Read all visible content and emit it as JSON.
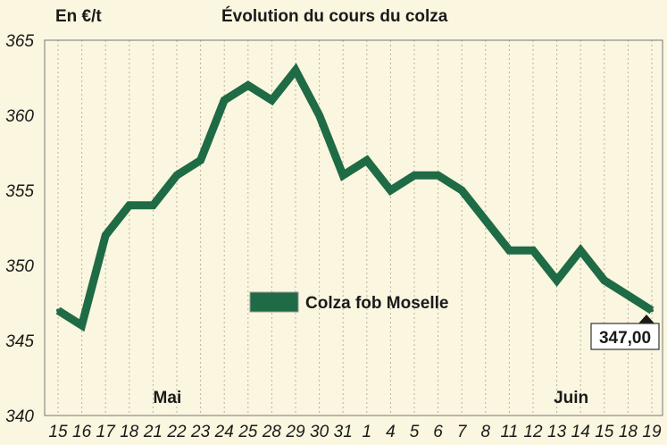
{
  "chart_data": {
    "type": "line",
    "title": "Évolution du cours du colza",
    "ylabel": "En €/t",
    "xlabel": "",
    "categories": [
      "15",
      "16",
      "17",
      "18",
      "21",
      "22",
      "23",
      "24",
      "25",
      "28",
      "29",
      "30",
      "31",
      "1",
      "4",
      "5",
      "6",
      "7",
      "8",
      "11",
      "12",
      "13",
      "14",
      "15",
      "18",
      "19"
    ],
    "month_labels": [
      {
        "text": "Mai",
        "at_index": 4
      },
      {
        "text": "Juin",
        "at_index": 21
      }
    ],
    "series": [
      {
        "name": "Colza fob Moselle",
        "color": "#1e6b45",
        "values": [
          347,
          346,
          352,
          354,
          354,
          356,
          357,
          361,
          362,
          361,
          363,
          360,
          356,
          357,
          355,
          356,
          356,
          355,
          353,
          351,
          351,
          349,
          351,
          349,
          348,
          347
        ]
      }
    ],
    "ylim": [
      340,
      365
    ],
    "yticks": [
      340,
      345,
      350,
      355,
      360,
      365
    ],
    "grid": "vertical-dashed",
    "legend_position": "center",
    "last_value_label": "347,00"
  }
}
